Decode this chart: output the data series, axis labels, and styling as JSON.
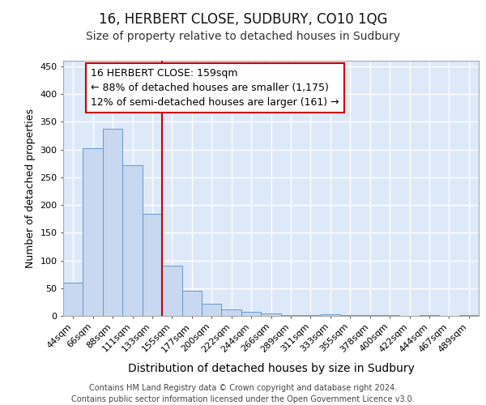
{
  "title": "16, HERBERT CLOSE, SUDBURY, CO10 1QG",
  "subtitle": "Size of property relative to detached houses in Sudbury",
  "xlabel": "Distribution of detached houses by size in Sudbury",
  "ylabel": "Number of detached properties",
  "bar_labels": [
    "44sqm",
    "66sqm",
    "88sqm",
    "111sqm",
    "133sqm",
    "155sqm",
    "177sqm",
    "200sqm",
    "222sqm",
    "244sqm",
    "266sqm",
    "289sqm",
    "311sqm",
    "333sqm",
    "355sqm",
    "378sqm",
    "400sqm",
    "422sqm",
    "444sqm",
    "467sqm",
    "489sqm"
  ],
  "bar_values": [
    60,
    303,
    338,
    272,
    184,
    90,
    45,
    22,
    12,
    7,
    4,
    2,
    2,
    3,
    2,
    2,
    1,
    0,
    1,
    0,
    2
  ],
  "bar_color_fill": "#c8d8f0",
  "bar_color_edge": "#6699cc",
  "vline_index": 5,
  "vline_color": "#cc0000",
  "annotation_title": "16 HERBERT CLOSE: 159sqm",
  "annotation_line1": "← 88% of detached houses are smaller (1,175)",
  "annotation_line2": "12% of semi-detached houses are larger (161) →",
  "annotation_box_facecolor": "#ffffff",
  "annotation_box_edgecolor": "#cc0000",
  "ylim": [
    0,
    460
  ],
  "yticks": [
    0,
    50,
    100,
    150,
    200,
    250,
    300,
    350,
    400,
    450
  ],
  "fig_bg_color": "#ffffff",
  "plot_bg_color": "#dde8f8",
  "grid_color": "#ffffff",
  "footer1": "Contains HM Land Registry data © Crown copyright and database right 2024.",
  "footer2": "Contains public sector information licensed under the Open Government Licence v3.0.",
  "title_fontsize": 12,
  "subtitle_fontsize": 10,
  "ylabel_fontsize": 9,
  "xlabel_fontsize": 10,
  "tick_fontsize": 8,
  "annot_fontsize": 9,
  "footer_fontsize": 7
}
